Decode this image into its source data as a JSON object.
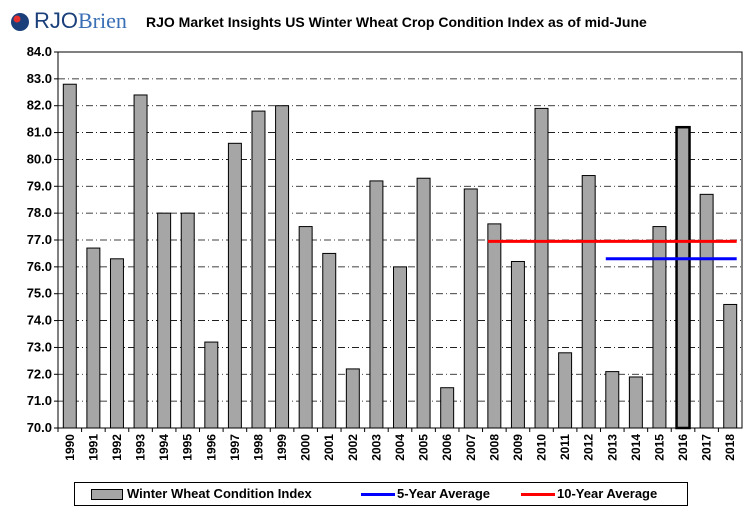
{
  "header": {
    "logo_text": "RJO",
    "logo_text2": "Brien",
    "title": "RJO Market Insights US Winter Wheat Crop Condition Index as of mid-June"
  },
  "legend": {
    "bar_label": "Winter Wheat Condition Index",
    "avg5_label": "5-Year Average",
    "avg10_label": "10-Year Average"
  },
  "colors": {
    "bar_fill": "#a6a6a6",
    "avg5": "#0000ff",
    "avg10": "#ff0000",
    "logo_dot": "#e8312f"
  },
  "chart_data": {
    "type": "bar",
    "title": "RJO Market Insights US Winter Wheat Crop Condition Index as of mid-June",
    "categories": [
      "1990",
      "1991",
      "1992",
      "1993",
      "1994",
      "1995",
      "1996",
      "1997",
      "1998",
      "1999",
      "2000",
      "2001",
      "2002",
      "2003",
      "2004",
      "2005",
      "2006",
      "2007",
      "2008",
      "2009",
      "2010",
      "2011",
      "2012",
      "2013",
      "2014",
      "2015",
      "2016",
      "2017",
      "2018"
    ],
    "series": [
      {
        "name": "Winter Wheat Condition Index",
        "values": [
          82.8,
          76.7,
          76.3,
          82.4,
          78.0,
          78.0,
          73.2,
          80.6,
          81.8,
          82.0,
          77.5,
          76.5,
          72.2,
          79.2,
          76.0,
          79.3,
          71.5,
          78.9,
          77.6,
          76.2,
          81.9,
          72.8,
          79.4,
          72.1,
          71.9,
          77.5,
          81.2,
          78.7,
          74.6
        ]
      }
    ],
    "highlight_category": "2016",
    "averages": [
      {
        "name": "5-Year Average",
        "value": 76.3,
        "from": "2013",
        "to": "2018"
      },
      {
        "name": "10-Year Average",
        "value": 76.95,
        "from": "2008",
        "to": "2018"
      }
    ],
    "ylim": [
      70.0,
      84.0
    ],
    "ytick_step": 1.0,
    "ytick_labels": [
      "70.0",
      "71.0",
      "72.0",
      "73.0",
      "74.0",
      "75.0",
      "76.0",
      "77.0",
      "78.0",
      "79.0",
      "80.0",
      "81.0",
      "82.0",
      "83.0",
      "84.0"
    ],
    "grid": true,
    "legend_position": "bottom"
  }
}
